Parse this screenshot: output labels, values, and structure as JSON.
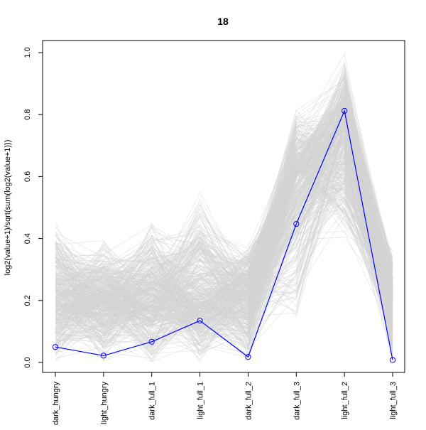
{
  "chart_data": {
    "type": "line",
    "title": "18",
    "xlabel": "",
    "ylabel": "log2(value+1)/sqrt(sum(log2(value+1)))",
    "ylim": [
      0,
      1.0
    ],
    "yticks": [
      "0.0",
      "0.2",
      "0.4",
      "0.6",
      "0.8",
      "1.0"
    ],
    "categories": [
      "dark_hungry",
      "light_hungry",
      "dark_full_1",
      "light_full_1",
      "dark_full_2",
      "dark_full_3",
      "light_full_2",
      "light_full_3"
    ],
    "grid": false,
    "legend": "none",
    "highlight_series": {
      "color": "#0000ff",
      "marker": "open-circle",
      "values": [
        0.05,
        0.022,
        0.067,
        0.135,
        0.018,
        0.447,
        0.812,
        0.008
      ]
    },
    "background_series": {
      "color": "#d3d3d3",
      "count": 400,
      "min": [
        0.0,
        0.0,
        0.0,
        0.0,
        0.0,
        0.09,
        0.38,
        0.0
      ],
      "max": [
        0.46,
        0.4,
        0.45,
        0.55,
        0.38,
        0.82,
        1.0,
        0.36
      ],
      "typical": [
        0.2,
        0.2,
        0.2,
        0.2,
        0.22,
        0.6,
        0.75,
        0.2
      ]
    }
  }
}
